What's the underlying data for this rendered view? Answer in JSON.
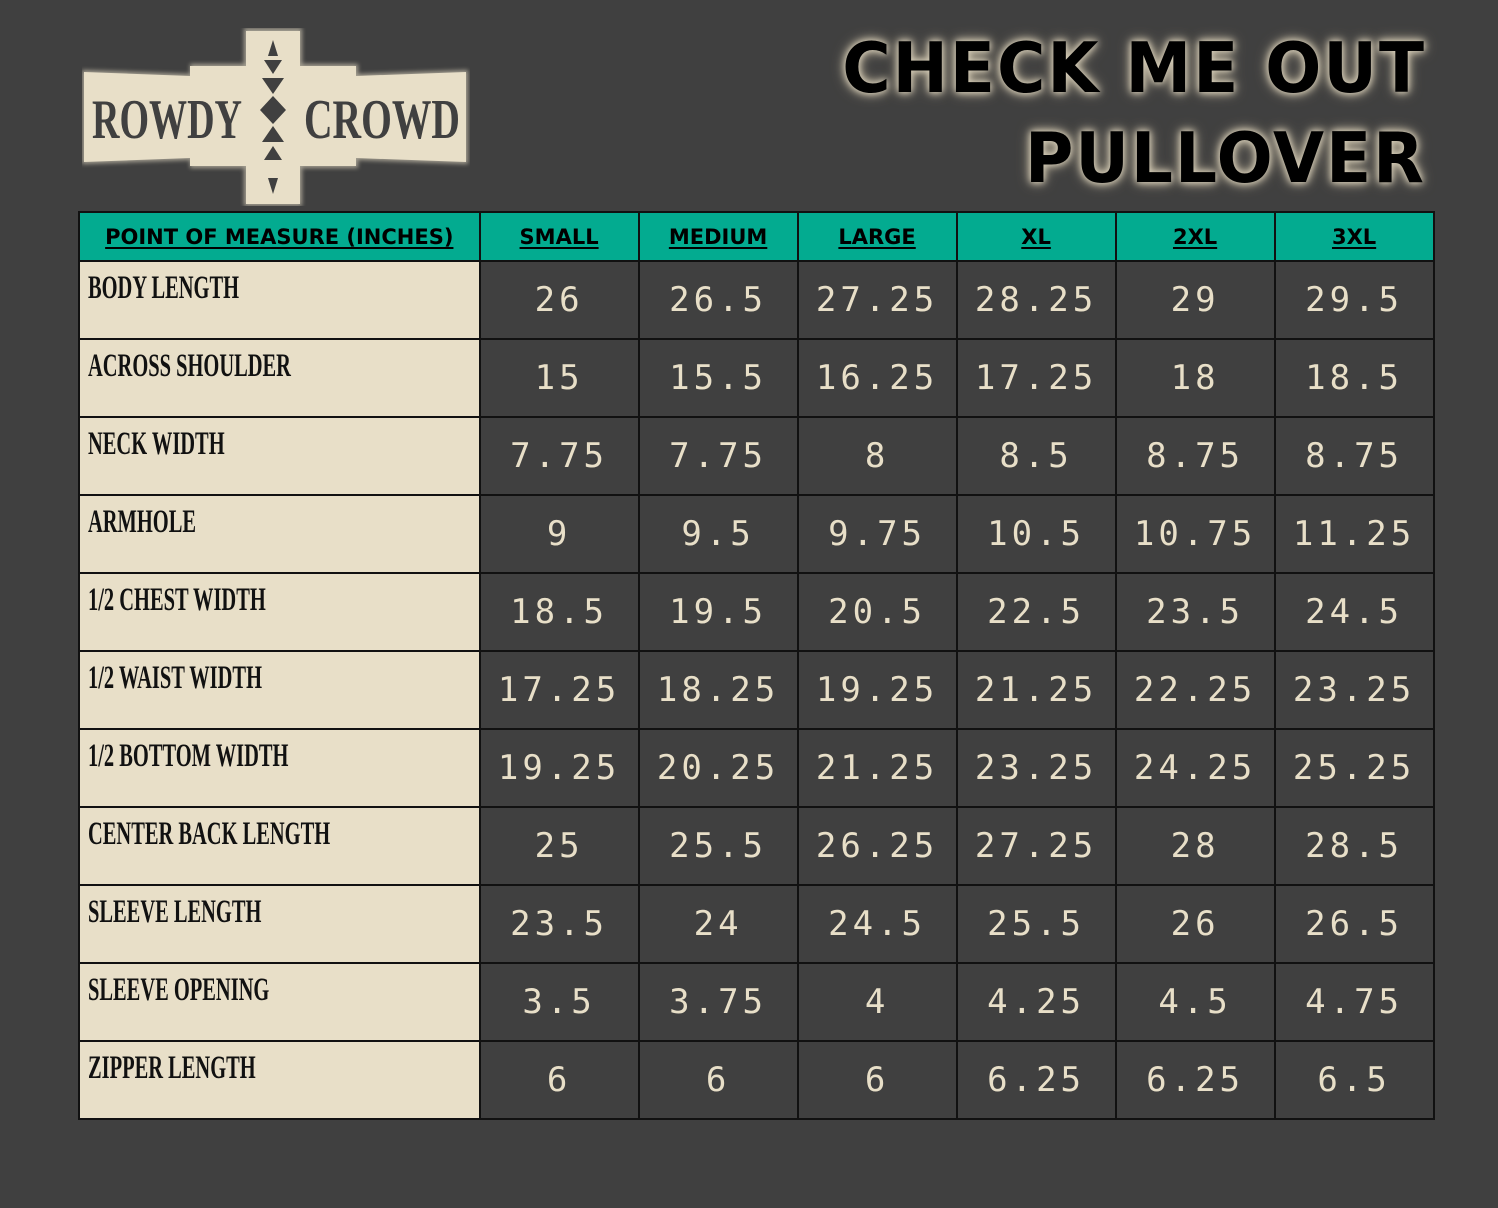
{
  "logo": {
    "left_word": "ROWDY",
    "right_word": "CROWD"
  },
  "title": {
    "line1": "CHECK ME OUT",
    "line2": "PULLOVER"
  },
  "colors": {
    "background": "#404040",
    "header": "#03ab90",
    "label_cell": "#e8dfc8",
    "value_text": "#e8dfc8"
  },
  "table": {
    "headers": [
      "POINT OF MEASURE (INCHES)",
      "SMALL",
      "MEDIUM",
      "LARGE",
      "XL",
      "2XL",
      "3XL"
    ],
    "rows": [
      {
        "label": "BODY LENGTH",
        "values": [
          "26",
          "26.5",
          "27.25",
          "28.25",
          "29",
          "29.5"
        ]
      },
      {
        "label": "ACROSS SHOULDER",
        "values": [
          "15",
          "15.5",
          "16.25",
          "17.25",
          "18",
          "18.5"
        ]
      },
      {
        "label": "NECK WIDTH",
        "values": [
          "7.75",
          "7.75",
          "8",
          "8.5",
          "8.75",
          "8.75"
        ]
      },
      {
        "label": "ARMHOLE",
        "values": [
          "9",
          "9.5",
          "9.75",
          "10.5",
          "10.75",
          "11.25"
        ]
      },
      {
        "label": "1/2 CHEST WIDTH",
        "values": [
          "18.5",
          "19.5",
          "20.5",
          "22.5",
          "23.5",
          "24.5"
        ]
      },
      {
        "label": "1/2 WAIST WIDTH",
        "values": [
          "17.25",
          "18.25",
          "19.25",
          "21.25",
          "22.25",
          "23.25"
        ]
      },
      {
        "label": "1/2 BOTTOM WIDTH",
        "values": [
          "19.25",
          "20.25",
          "21.25",
          "23.25",
          "24.25",
          "25.25"
        ]
      },
      {
        "label": "CENTER BACK LENGTH",
        "values": [
          "25",
          "25.5",
          "26.25",
          "27.25",
          "28",
          "28.5"
        ]
      },
      {
        "label": "SLEEVE LENGTH",
        "values": [
          "23.5",
          "24",
          "24.5",
          "25.5",
          "26",
          "26.5"
        ]
      },
      {
        "label": "SLEEVE OPENING",
        "values": [
          "3.5",
          "3.75",
          "4",
          "4.25",
          "4.5",
          "4.75"
        ]
      },
      {
        "label": "ZIPPER LENGTH",
        "values": [
          "6",
          "6",
          "6",
          "6.25",
          "6.25",
          "6.5"
        ]
      }
    ]
  }
}
